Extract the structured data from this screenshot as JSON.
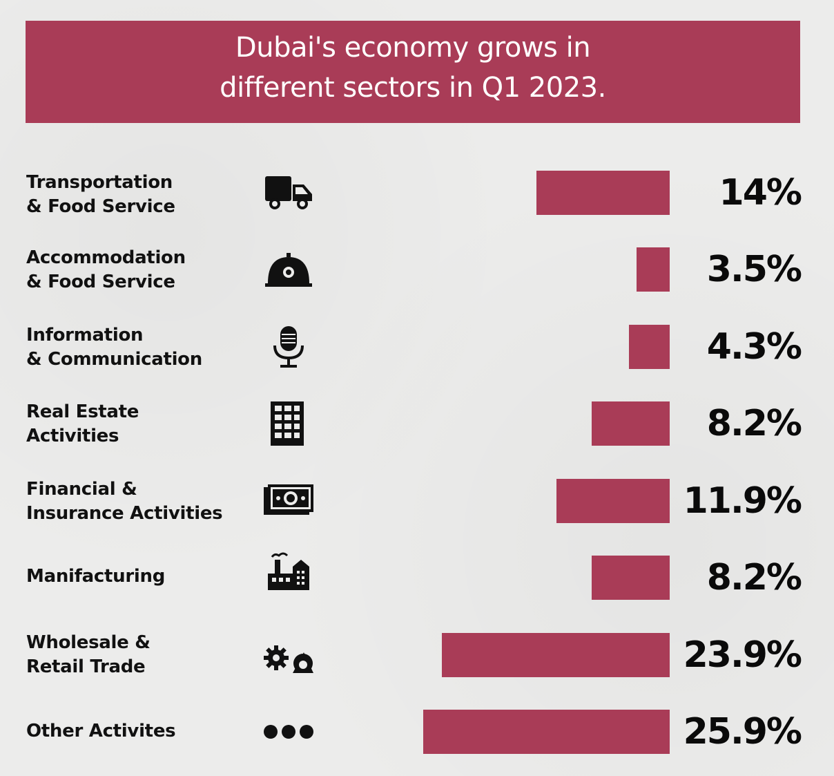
{
  "header": {
    "title_line1": "Dubai's economy grows in",
    "title_line2": "different sectors in Q1 2023."
  },
  "colors": {
    "bar": "#a93c57",
    "banner": "#a93c57",
    "text": "#111111"
  },
  "chart_data": {
    "type": "bar",
    "orientation": "horizontal",
    "title": "Dubai's economy grows in different sectors in Q1 2023.",
    "categories": [
      "Transportation & Food Service",
      "Accommodation & Food Service",
      "Information & Communication",
      "Real Estate Activities",
      "Financial & Insurance Activities",
      "Manifacturing",
      "Wholesale & Retail Trade",
      "Other Activites"
    ],
    "values": [
      14,
      3.5,
      4.3,
      8.2,
      11.9,
      8.2,
      23.9,
      25.9
    ],
    "value_labels": [
      "14%",
      "3.5%",
      "4.3%",
      "8.2%",
      "11.9%",
      "8.2%",
      "23.9%",
      "25.9%"
    ],
    "unit": "%",
    "grid": false,
    "legend": "none"
  },
  "rows": [
    {
      "label_line1": "Transportation",
      "label_line2": "& Food Service",
      "icon": "truck-icon"
    },
    {
      "label_line1": "Accommodation",
      "label_line2": "& Food Service",
      "icon": "cloche-icon"
    },
    {
      "label_line1": "Information",
      "label_line2": "& Communication",
      "icon": "microphone-icon"
    },
    {
      "label_line1": "Real Estate",
      "label_line2": "Activities",
      "icon": "building-icon"
    },
    {
      "label_line1": "Financial &",
      "label_line2": "Insurance Activities",
      "icon": "banknote-icon"
    },
    {
      "label_line1": "Manifacturing",
      "label_line2": "",
      "icon": "factory-icon"
    },
    {
      "label_line1": "Wholesale &",
      "label_line2": "Retail Trade",
      "icon": "gears-icon"
    },
    {
      "label_line1": "Other Activites",
      "label_line2": "",
      "icon": "more-dots-icon"
    }
  ]
}
